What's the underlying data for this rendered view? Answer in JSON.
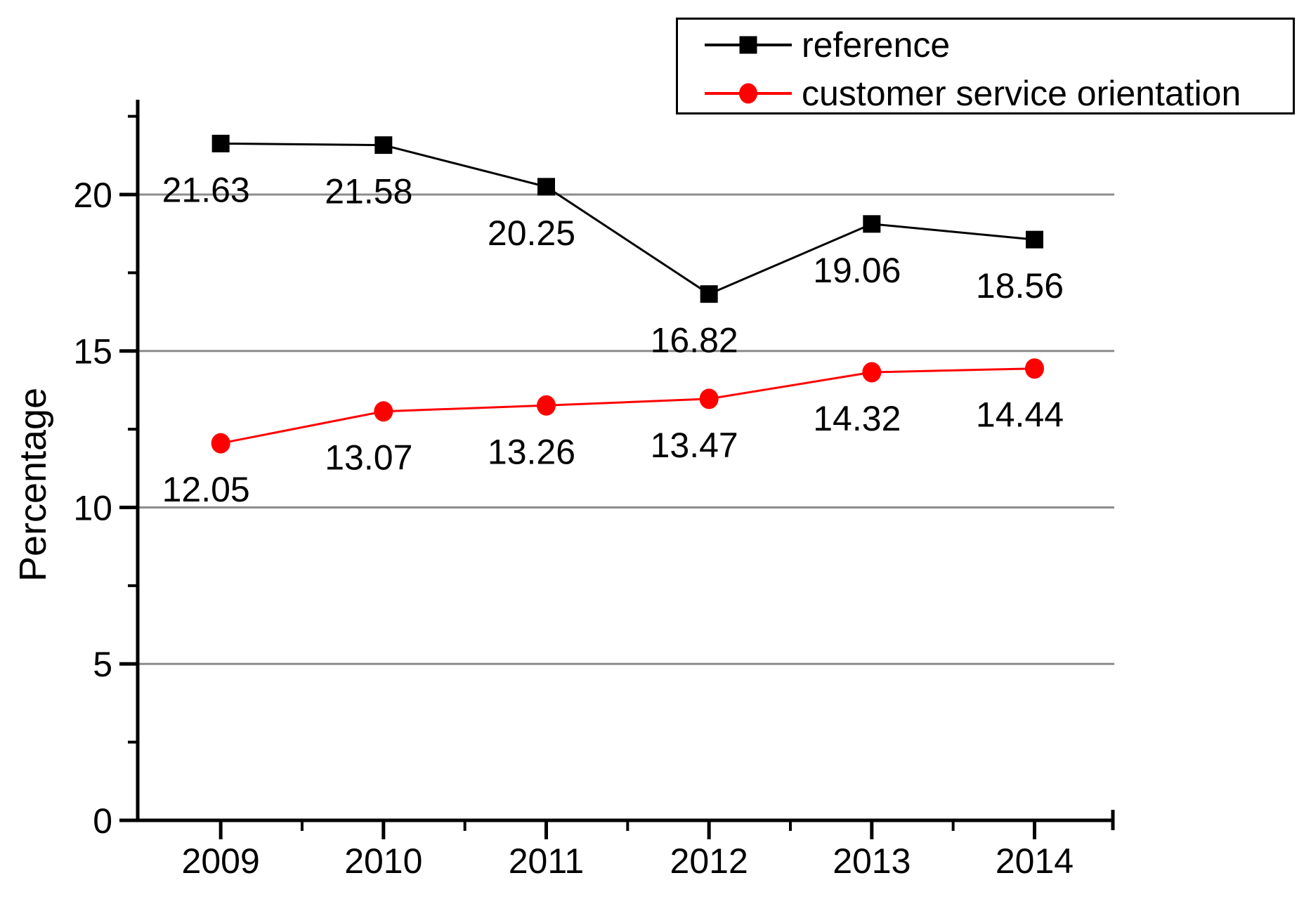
{
  "chart_data": {
    "type": "line",
    "title": "",
    "xlabel": "",
    "ylabel": "Percentage",
    "categories": [
      "2009",
      "2010",
      "2011",
      "2012",
      "2013",
      "2014"
    ],
    "x_values": [
      2009,
      2010,
      2011,
      2012,
      2013,
      2014
    ],
    "series": [
      {
        "name": "reference",
        "color": "#000000",
        "marker": "square",
        "values": [
          21.63,
          21.58,
          20.25,
          16.82,
          19.06,
          18.56
        ],
        "labels": [
          "21.63",
          "21.58",
          "20.25",
          "16.82",
          "19.06",
          "18.56"
        ]
      },
      {
        "name": "customer service orientation",
        "color": "#ff0000",
        "marker": "circle",
        "values": [
          12.05,
          13.07,
          13.26,
          13.47,
          14.32,
          14.44
        ],
        "labels": [
          "12.05",
          "13.07",
          "13.26",
          "13.47",
          "14.32",
          "14.44"
        ]
      }
    ],
    "y_axis": {
      "range": [
        0,
        23.03
      ],
      "ticks_major": [
        0,
        5,
        10,
        15,
        20
      ],
      "tick_labels": [
        "0",
        "5",
        "10",
        "15",
        "20"
      ],
      "ticks_minor": [
        2.5,
        7.5,
        12.5,
        17.5,
        22.5
      ],
      "gridlines": [
        5,
        10,
        15,
        20
      ]
    },
    "x_axis": {
      "range": [
        2008.49,
        2014.49
      ],
      "ticks_minor": [
        2009.5,
        2010.5,
        2011.5,
        2012.5,
        2013.5
      ]
    },
    "colors": {
      "grid": "#8c8c8c",
      "axis": "#000000",
      "background": "#ffffff"
    },
    "legend": {
      "position": "top-right",
      "entries": [
        "reference",
        "customer service orientation"
      ]
    },
    "grid": true,
    "data_labels_shown": true
  }
}
